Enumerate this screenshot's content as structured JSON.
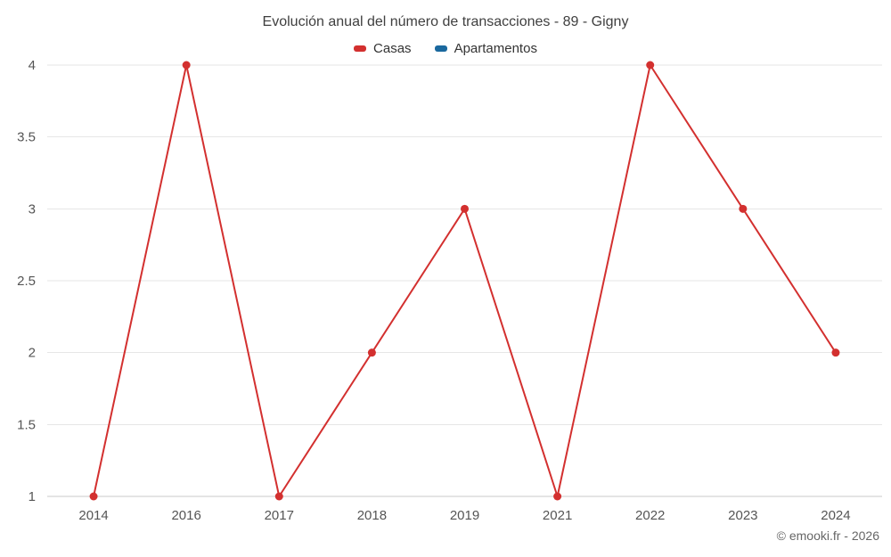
{
  "title": "Evolución anual del número de transacciones - 89 - Gigny",
  "footer": "© emooki.fr - 2026",
  "colors": {
    "casas": "#d3302f",
    "apartamentos": "#1a689e",
    "gridline": "#e6e6e6",
    "axisline": "#c9c9c9",
    "tick_label": "#555555",
    "title_text": "#3f3f3f"
  },
  "legend": [
    {
      "label": "Casas",
      "color": "#d3302f"
    },
    {
      "label": "Apartamentos",
      "color": "#1a689e"
    }
  ],
  "chart_data": {
    "type": "line",
    "title": "Evolución anual del número de transacciones - 89 - Gigny",
    "categories": [
      "2014",
      "2016",
      "2017",
      "2018",
      "2019",
      "2021",
      "2022",
      "2023",
      "2024"
    ],
    "series": [
      {
        "name": "Casas",
        "color": "#d3302f",
        "values": [
          1,
          4,
          1,
          2,
          3,
          1,
          4,
          3,
          2
        ]
      },
      {
        "name": "Apartamentos",
        "color": "#1a689e",
        "values": []
      }
    ],
    "xlabel": "",
    "ylabel": "",
    "ylim": [
      1,
      4
    ],
    "yticks": [
      1,
      1.5,
      2,
      2.5,
      3,
      3.5,
      4
    ],
    "grid": "horizontal",
    "legend_position": "top"
  }
}
